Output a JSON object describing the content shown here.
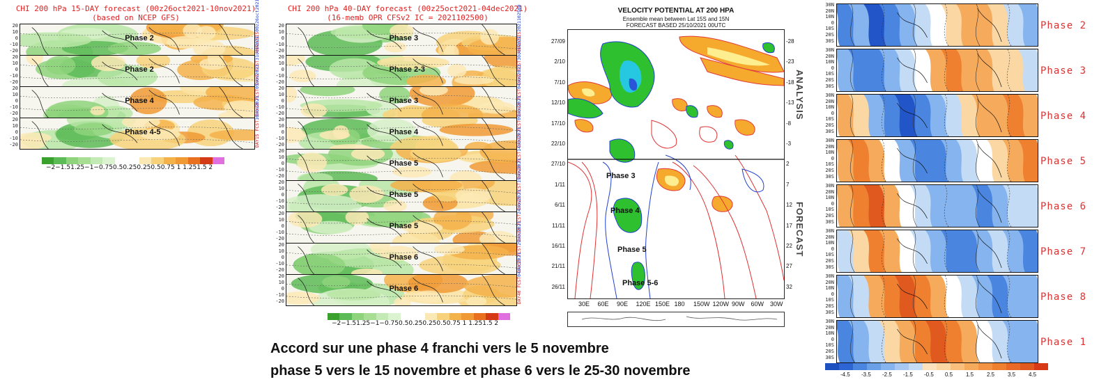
{
  "panel_gfs": {
    "title_line1": "CHI 200 hPa 15-DAY forecast (00z26oct2021-10nov2021)",
    "title_line2": "(based on NCEP GFS)",
    "lat_ticks": [
      "20",
      "10",
      "0",
      "-10",
      "-20"
    ],
    "strips": [
      {
        "phase": "Phase 2",
        "side_red": "ANALYSIS",
        "side_blue": "00z26oct2021"
      },
      {
        "phase": "Phase 2",
        "side_red": "DAY5 FCST",
        "side_blue": "31oct2021"
      },
      {
        "phase": "Phase 4",
        "side_red": "DAY10 FCST",
        "side_blue": "05nov2021"
      },
      {
        "phase": "Phase 4-5",
        "side_red": "DAY15 FCST",
        "side_blue": "10nov2021"
      }
    ],
    "colorbar_labels": "−2−1.51.25−1−0.750.50.250.250.50.75 1 1.251.5  2"
  },
  "panel_cfs": {
    "title_line1": "CHI 200 hPa 40-DAY forecast (00z25oct2021-04dec2021)",
    "title_line2": "(16-memb OPR CFSv2 IC = 2021102500)",
    "lat_ticks": [
      "20",
      "10",
      "0",
      "-10",
      "-20"
    ],
    "strips": [
      {
        "phase": "Phase 3",
        "side_red": "ANALYSIS",
        "side_blue": "2021102500"
      },
      {
        "phase": "Phase 2-3",
        "side_red": "DAY5 FCST",
        "side_blue": "30oct2021"
      },
      {
        "phase": "Phase 3",
        "side_red": "DAY10 FCST",
        "side_blue": "04nov2021"
      },
      {
        "phase": "Phase 4",
        "side_red": "DAY15 FCST",
        "side_blue": "09nov2021"
      },
      {
        "phase": "Phase 5",
        "side_red": "DAY20 FCST",
        "side_blue": "14nov2021"
      },
      {
        "phase": "Phase 5",
        "side_red": "DAY25 FCST",
        "side_blue": "19nov2021"
      },
      {
        "phase": "Phase 5",
        "side_red": "DAY30 FCST",
        "side_blue": "24nov2021"
      },
      {
        "phase": "Phase 6",
        "side_red": "DAY35 FCST",
        "side_blue": "29nov2021"
      },
      {
        "phase": "Phase 6",
        "side_red": "DAY40 FCST",
        "side_blue": "04dec2021"
      }
    ],
    "colorbar_labels": "−2−1.51.25−1−0.750.50.250.250.50.75 1 1.251.5  2"
  },
  "panel_vp": {
    "title": "VELOCITY POTENTIAL AT 200 HPA",
    "subtitle1": "Ensemble mean between Lat 15S and 15N",
    "subtitle2": "FORECAST BASED 25/10/2021 00UTC",
    "left_dates": [
      "27/09",
      "2/10",
      "7/10",
      "12/10",
      "17/10",
      "22/10",
      "27/10",
      "1/11",
      "6/11",
      "11/11",
      "16/11",
      "21/11",
      "26/11"
    ],
    "right_ticks": [
      "-28",
      "-23",
      "-18",
      "-13",
      "-8",
      "-3",
      "2",
      "7",
      "12",
      "17",
      "22",
      "27",
      "32"
    ],
    "x_ticks": [
      "30E",
      "60E",
      "90E",
      "120E",
      "150E",
      "180",
      "150W",
      "120W",
      "90W",
      "60W",
      "30W"
    ],
    "side_analysis": "ANALYSIS",
    "side_forecast": "FORECAST",
    "phase_labels": [
      "Phase 3",
      "Phase 4",
      "Phase 5",
      "Phase 5-6"
    ]
  },
  "panel_composites": {
    "lat_ticks": [
      "30N",
      "20N",
      "10N",
      "0",
      "10S",
      "20S",
      "30S"
    ],
    "phases": [
      "Phase 2",
      "Phase 3",
      "Phase 4",
      "Phase 5",
      "Phase 6",
      "Phase 7",
      "Phase 8",
      "Phase 1"
    ],
    "colorbar_labels": [
      "-4.5",
      "-3.5",
      "-2.5",
      "-1.5",
      "-0.5",
      "0.5",
      "1.5",
      "2.5",
      "3.5",
      "4.5"
    ]
  },
  "caption": {
    "line1": "Accord sur une phase 4 franchi vers le 5 novembre",
    "line2": "phase 5 vers le 15 novembre et phase 6 vers le 25-30 novembre"
  }
}
